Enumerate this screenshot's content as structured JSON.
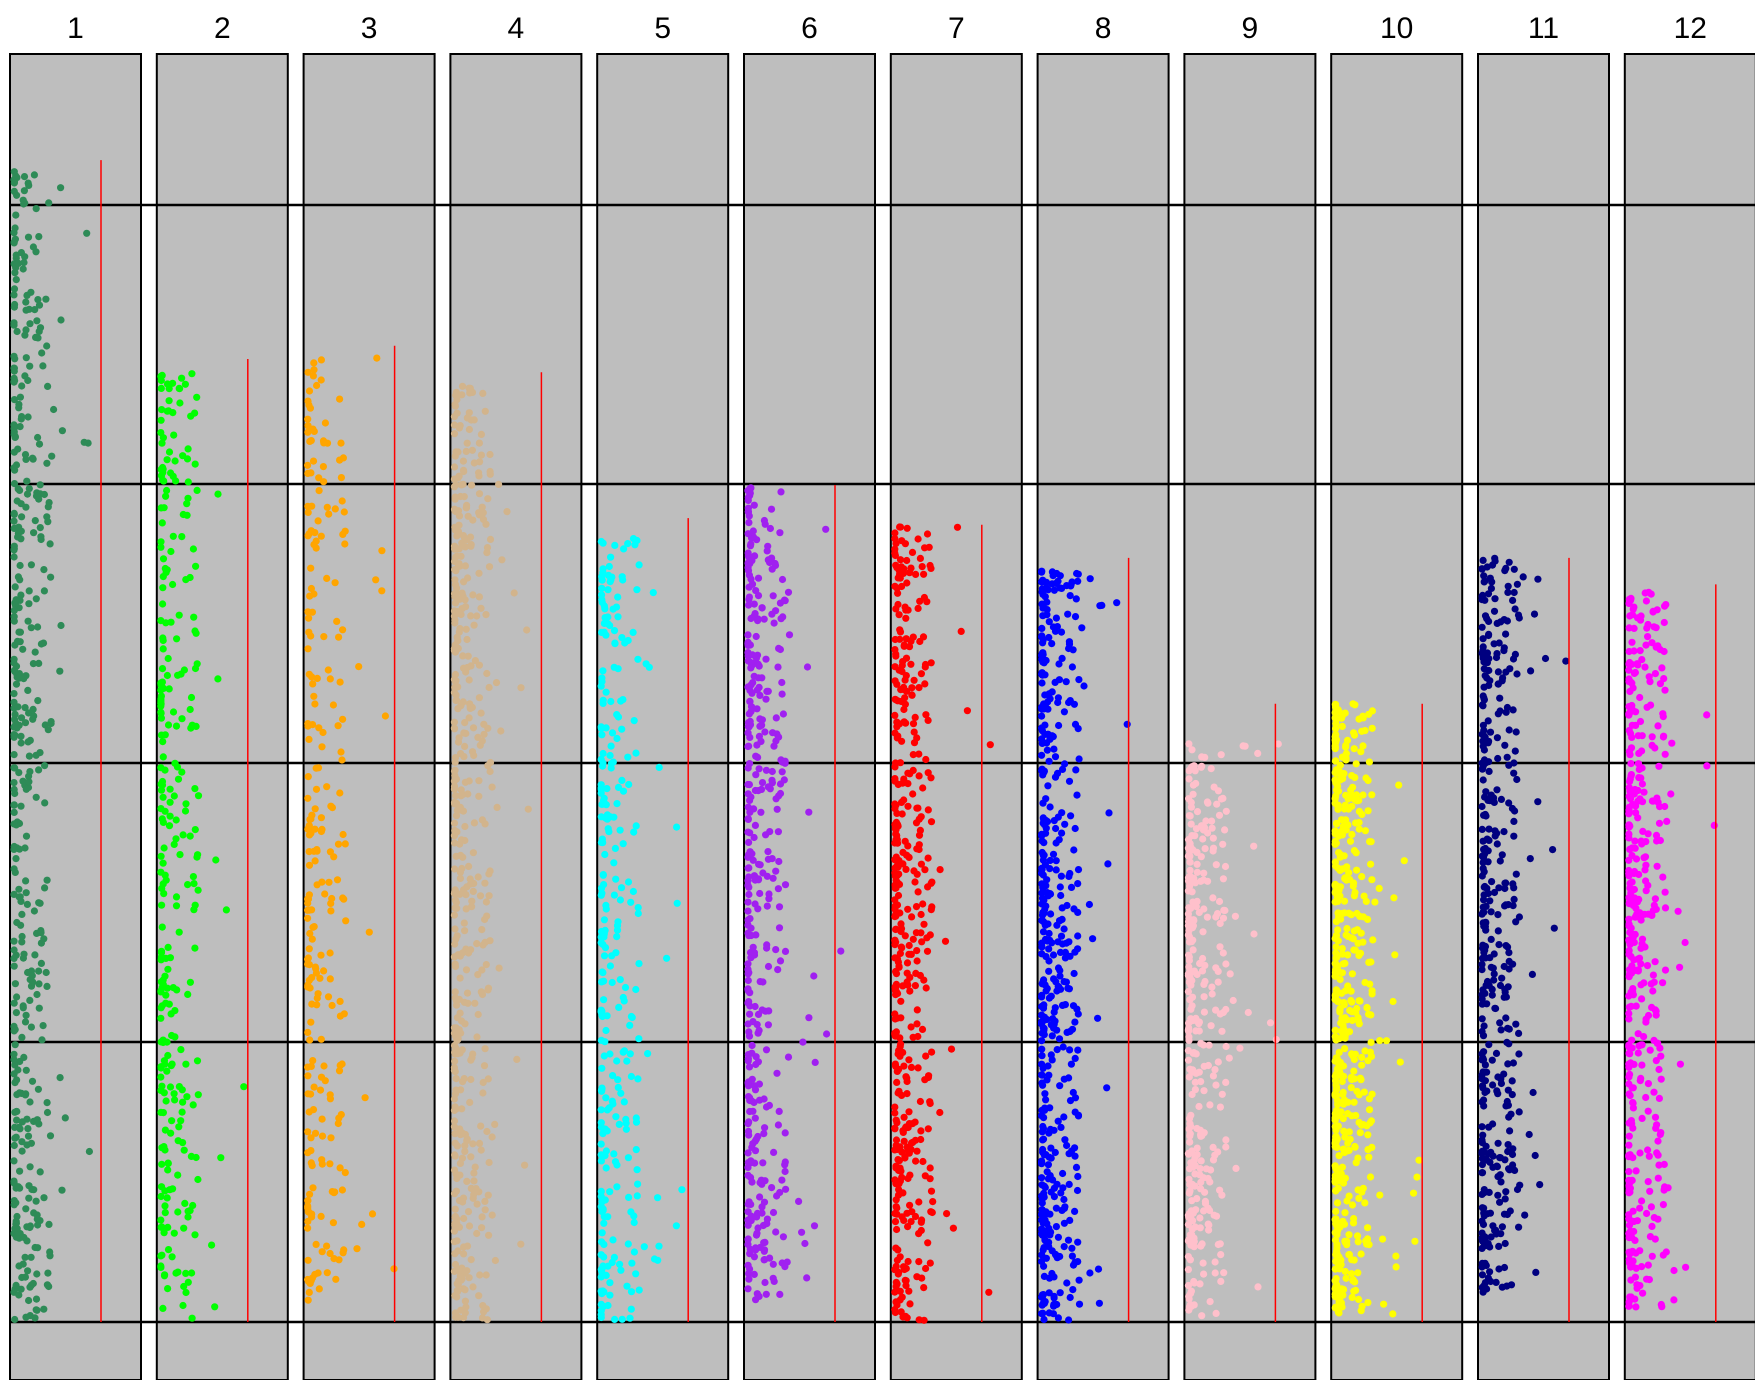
{
  "chart_data": {
    "type": "scatter",
    "title": "",
    "xlabel": "",
    "ylabel": "",
    "grid": true,
    "panel_background": "#bebebe",
    "reference_line_color": "#ff0000",
    "tracks": [
      {
        "label": "1",
        "color": "#2e8b57",
        "y_top": 0.085,
        "y_bottom": 0.955,
        "line_top": 0.08,
        "density": 1.2
      },
      {
        "label": "2",
        "color": "#00ff00",
        "y_top": 0.24,
        "y_bottom": 0.955,
        "line_top": 0.23,
        "density": 0.8
      },
      {
        "label": "3",
        "color": "#ffa500",
        "y_top": 0.228,
        "y_bottom": 0.94,
        "line_top": 0.22,
        "density": 0.7
      },
      {
        "label": "4",
        "color": "#d2b48c",
        "y_top": 0.25,
        "y_bottom": 0.955,
        "line_top": 0.24,
        "density": 1.3
      },
      {
        "label": "5",
        "color": "#00ffff",
        "y_top": 0.365,
        "y_bottom": 0.955,
        "line_top": 0.35,
        "density": 0.8
      },
      {
        "label": "6",
        "color": "#a020f0",
        "y_top": 0.325,
        "y_bottom": 0.945,
        "line_top": 0.325,
        "density": 1.1
      },
      {
        "label": "7",
        "color": "#ff0000",
        "y_top": 0.355,
        "y_bottom": 0.955,
        "line_top": 0.355,
        "density": 1.2
      },
      {
        "label": "8",
        "color": "#0000ff",
        "y_top": 0.39,
        "y_bottom": 0.955,
        "line_top": 0.38,
        "density": 1.3
      },
      {
        "label": "9",
        "color": "#ffc0cb",
        "y_top": 0.52,
        "y_bottom": 0.955,
        "line_top": 0.49,
        "density": 0.9
      },
      {
        "label": "10",
        "color": "#ffff00",
        "y_top": 0.49,
        "y_bottom": 0.955,
        "line_top": 0.49,
        "density": 1.4
      },
      {
        "label": "11",
        "color": "#000080",
        "y_top": 0.38,
        "y_bottom": 0.935,
        "line_top": 0.38,
        "density": 1.1
      },
      {
        "label": "12",
        "color": "#ff00ff",
        "y_top": 0.405,
        "y_bottom": 0.945,
        "line_top": 0.4,
        "density": 1.1
      }
    ]
  }
}
